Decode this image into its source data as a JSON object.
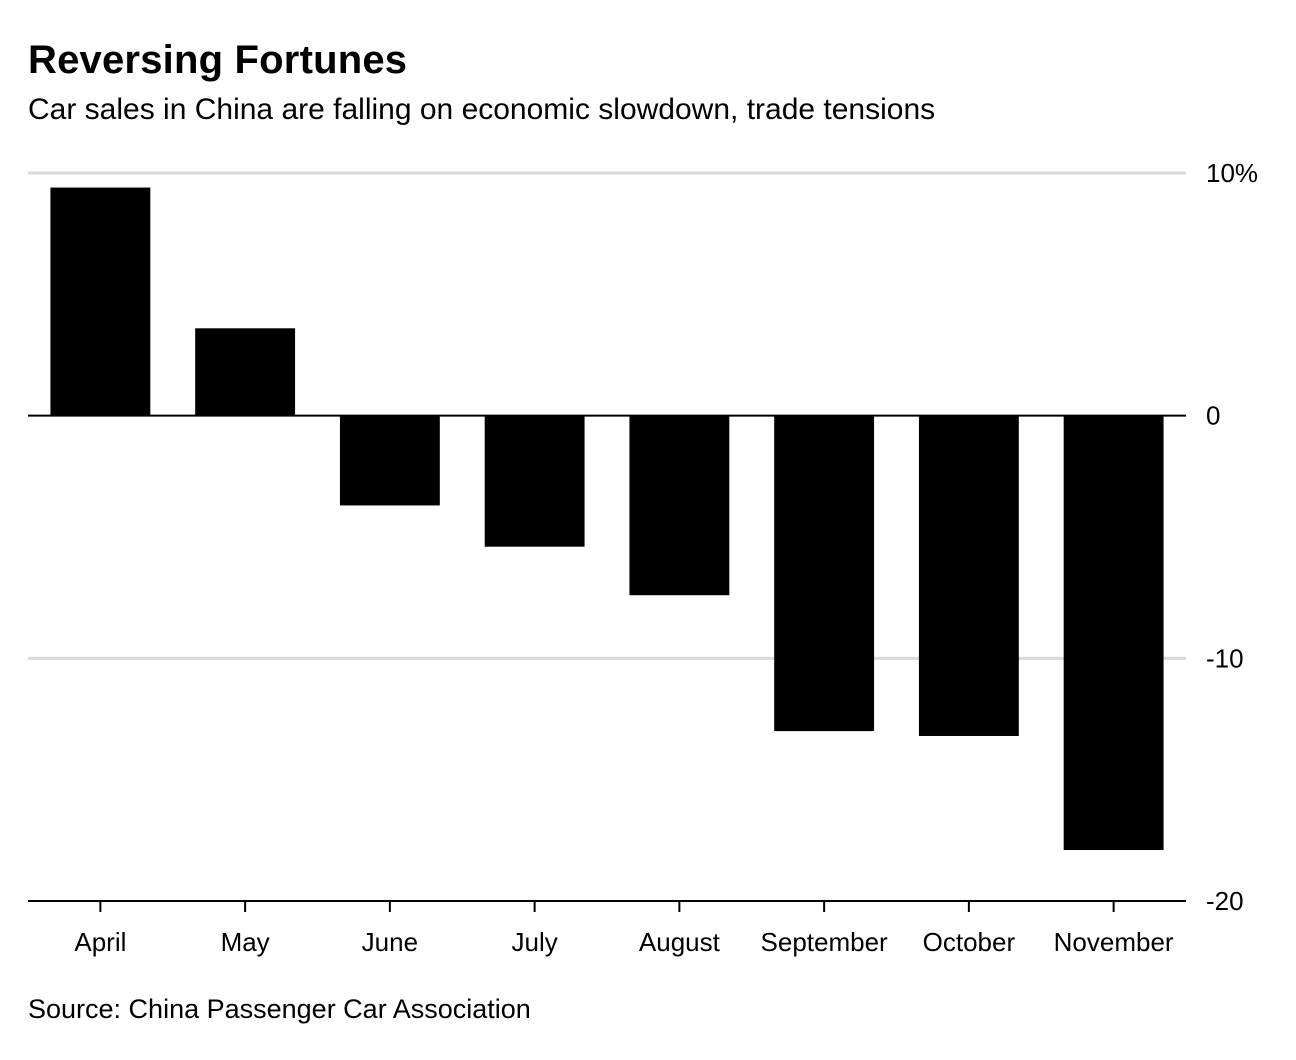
{
  "title": "Reversing Fortunes",
  "subtitle": "Car sales in China are falling on economic slowdown, trade tensions",
  "source": "Source: China Passenger Car Association",
  "colors": {
    "bar": "#000000",
    "gridline": "#d9d9d9",
    "zero_line": "#000000",
    "background": "#ffffff"
  },
  "chart_data": {
    "type": "bar",
    "categories": [
      "April",
      "May",
      "June",
      "July",
      "August",
      "September",
      "October",
      "November"
    ],
    "values": [
      9.4,
      3.6,
      -3.7,
      -5.4,
      -7.4,
      -13.0,
      -13.2,
      -17.9
    ],
    "ylim": [
      -20,
      10
    ],
    "y_ticks": [
      {
        "value": 10,
        "label": "10%"
      },
      {
        "value": 0,
        "label": "0"
      },
      {
        "value": -10,
        "label": "-10"
      },
      {
        "value": -20,
        "label": "-20"
      }
    ],
    "y_axis_side": "right",
    "grid": true,
    "legend": "none"
  }
}
